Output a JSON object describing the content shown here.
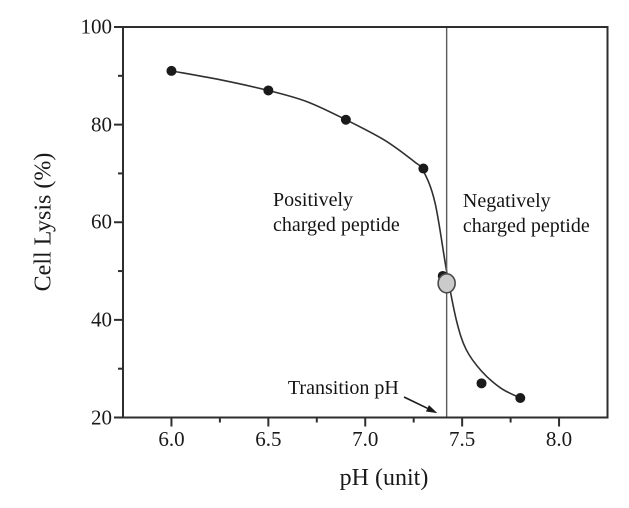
{
  "chart_data": {
    "type": "scatter",
    "title": "",
    "xlabel": "pH (unit)",
    "ylabel": "Cell Lysis (%)",
    "xlim": [
      5.75,
      8.25
    ],
    "ylim": [
      20,
      100
    ],
    "x_major_ticks": [
      "6.0",
      "6.5",
      "7.0",
      "7.5",
      "8.0"
    ],
    "x_minor_ticks": [
      6.25,
      6.75,
      7.25,
      7.75
    ],
    "y_major_ticks": [
      "20",
      "40",
      "60",
      "80",
      "100"
    ],
    "y_minor_ticks": [
      30,
      50,
      70,
      90
    ],
    "grid": false,
    "legend": "none",
    "points": [
      {
        "x": 6.0,
        "y": 91
      },
      {
        "x": 6.5,
        "y": 87
      },
      {
        "x": 6.9,
        "y": 81
      },
      {
        "x": 7.3,
        "y": 71
      },
      {
        "x": 7.4,
        "y": 49
      },
      {
        "x": 7.6,
        "y": 27
      },
      {
        "x": 7.8,
        "y": 24
      }
    ],
    "fit_curve_points": [
      [
        6.0,
        91
      ],
      [
        6.25,
        89.2
      ],
      [
        6.5,
        87
      ],
      [
        6.7,
        84.7
      ],
      [
        6.9,
        81
      ],
      [
        7.1,
        76.8
      ],
      [
        7.25,
        72.5
      ],
      [
        7.3,
        70.5
      ],
      [
        7.36,
        64
      ],
      [
        7.42,
        50
      ],
      [
        7.47,
        40
      ],
      [
        7.52,
        34
      ],
      [
        7.6,
        29.5
      ],
      [
        7.7,
        26
      ],
      [
        7.8,
        24
      ]
    ],
    "transition_line_x": 7.42,
    "highlight_ellipse": {
      "x": 7.42,
      "y": 47.5
    },
    "annotations": [
      {
        "name": "positively-charged-peptide-label",
        "text": "Positively\ncharged peptide",
        "x": 6.524,
        "y_top": 67.0
      },
      {
        "name": "negatively-charged-peptide-label",
        "text": "Negatively\ncharged peptide",
        "x": 7.504,
        "y_top": 66.8
      },
      {
        "name": "transition-ph-label",
        "text": "Transition pH",
        "x": 6.601,
        "y_top": 28.5
      }
    ],
    "arrow": {
      "x1": 7.2,
      "y1": 24.2,
      "x2": 7.372,
      "y2": 20.9
    },
    "colors": {
      "frame": "#2e2e2e",
      "curve": "#303030",
      "point": "#1a1a1a",
      "transition_line": "#5a5a5a",
      "ellipse_fill": "#cbcbcb",
      "ellipse_stroke": "#4a4a4a",
      "text": "#1a1a1a"
    }
  }
}
